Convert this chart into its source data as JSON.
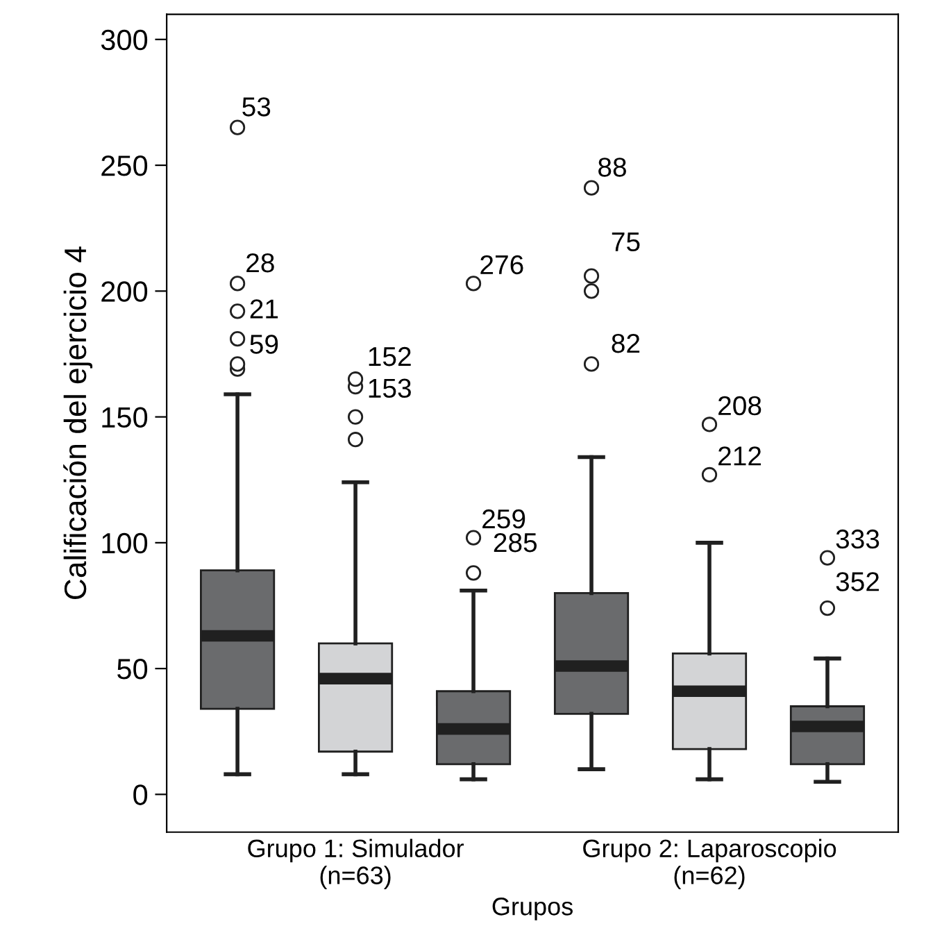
{
  "chart_data": {
    "type": "box",
    "xlabel": "Grupos",
    "ylabel": "Calificación del ejercicio 4",
    "categories": [
      null,
      "Grupo 1: Simulador\n(n=63)",
      null,
      null,
      "Grupo 2: Laparoscopio\n(n=62)",
      null
    ],
    "colors": [
      "#6a6b6d",
      "#d3d4d6",
      "#6a6b6d",
      "#6a6b6d",
      "#d3d4d6",
      "#6a6b6d"
    ],
    "boxes": [
      {
        "low": 8,
        "q1": 34,
        "median": 63,
        "q3": 89,
        "high": 159,
        "outliers": [
          169,
          171,
          181,
          192,
          203,
          265
        ]
      },
      {
        "low": 8,
        "q1": 17,
        "median": 46,
        "q3": 60,
        "high": 124,
        "outliers": [
          141,
          150,
          162,
          165
        ]
      },
      {
        "low": 6,
        "q1": 12,
        "median": 26,
        "q3": 41,
        "high": 81,
        "outliers": [
          88,
          102,
          203
        ]
      },
      {
        "low": 10,
        "q1": 32,
        "median": 51,
        "q3": 80,
        "high": 134,
        "outliers": [
          171,
          200,
          206,
          241
        ]
      },
      {
        "low": 6,
        "q1": 18,
        "median": 41,
        "q3": 56,
        "high": 100,
        "outliers": [
          127,
          147
        ]
      },
      {
        "low": 5,
        "q1": 12,
        "median": 27,
        "q3": 35,
        "high": 54,
        "outliers": [
          74,
          94
        ]
      }
    ],
    "ylim": [
      -15,
      310
    ],
    "yticks": [
      0,
      50,
      100,
      150,
      200,
      250,
      300
    ],
    "grid": false,
    "legend": false,
    "annotations": [
      "53",
      "28",
      "21",
      "59",
      "152",
      "153",
      "276",
      "259",
      "285",
      "88",
      "75",
      "82",
      "208",
      "212",
      "333",
      "352"
    ]
  }
}
